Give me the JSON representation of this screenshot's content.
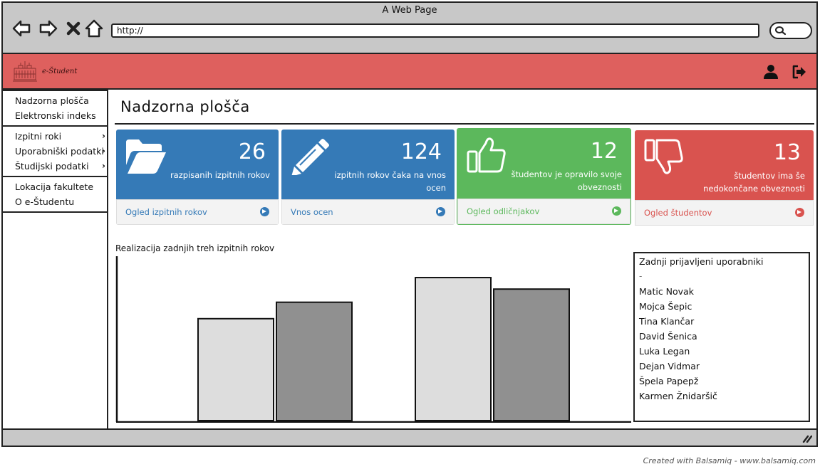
{
  "browser": {
    "window_title": "A Web Page",
    "url": "http://"
  },
  "brand": {
    "name": "e-Študent"
  },
  "sidebar": {
    "groups": [
      {
        "items": [
          {
            "label": "Nadzorna plošča"
          },
          {
            "label": "Elektronski indeks"
          }
        ]
      },
      {
        "items": [
          {
            "label": "Izpitni roki",
            "chevron": "›"
          },
          {
            "label": "Uporabniški podatki",
            "chevron": "›"
          },
          {
            "label": "Študijski podatki",
            "chevron": "›"
          }
        ]
      },
      {
        "items": [
          {
            "label": "Lokacija fakultete"
          },
          {
            "label": "O e-Študentu"
          }
        ]
      }
    ]
  },
  "main": {
    "title": "Nadzorna plošča",
    "cards": [
      {
        "value": "26",
        "label": "razpisanih izpitnih rokov",
        "link": "Ogled izpitnih rokov",
        "icon": "folder-open-icon",
        "color": "#357ab7",
        "link_color": "#357ab7"
      },
      {
        "value": "124",
        "label": "izpitnih rokov čaka na vnos ocen",
        "link": "Vnos ocen",
        "icon": "pencil-icon",
        "color": "#357ab7",
        "link_color": "#357ab7"
      },
      {
        "value": "12",
        "label": "študentov je opravilo svoje obveznosti",
        "link": "Ogled odličnjakov",
        "icon": "thumbs-up-icon",
        "color": "#5cb85c",
        "link_color": "#5cb85c"
      },
      {
        "value": "13",
        "label": "študentov ima še nedokončane obveznosti",
        "link": "Ogled študentov",
        "icon": "thumbs-down-icon",
        "color": "#d9534f",
        "link_color": "#d9534f"
      }
    ],
    "chart_title": "Realizacija zadnjih treh izpitnih rokov",
    "recent_users": {
      "title": "Zadnji prijavljeni uporabniki",
      "separator": "-",
      "names": [
        "Matic Novak",
        "Mojca Šepic",
        "Tina Klančar",
        "David Šenica",
        "Luka Legan",
        "Dejan Vidmar",
        "Špela Papepž",
        "Karmen Žnidaršič"
      ]
    }
  },
  "chart_data": {
    "type": "bar",
    "title": "Realizacija zadnjih treh izpitnih rokov",
    "xlabel": "",
    "ylabel": "",
    "ylim": [
      0,
      100
    ],
    "grid": false,
    "groups": [
      {
        "values": [
          62,
          72
        ]
      },
      {
        "values": [
          87,
          80
        ]
      }
    ],
    "series_colors": [
      "#dddddd",
      "#909090"
    ]
  },
  "footer": {
    "credit": "Created with Balsamiq - www.balsamiq.com"
  },
  "colors": {
    "header": "#de605e",
    "chrome": "#c8c8c8"
  }
}
